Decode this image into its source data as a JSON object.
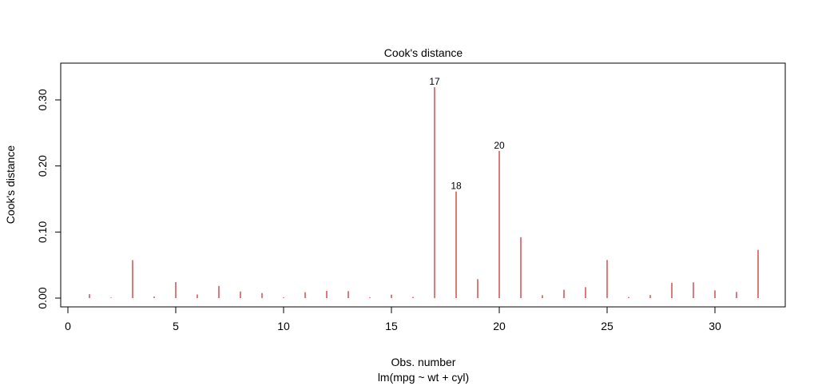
{
  "chart_data": {
    "type": "bar",
    "title": "Cook's distance",
    "xlabel": "Obs. number",
    "subtitle": "lm(mpg ~ wt + cyl)",
    "ylabel": "Cook's distance",
    "xlim": [
      0,
      33
    ],
    "ylim": [
      0,
      0.35
    ],
    "x_ticks": [
      0,
      5,
      10,
      15,
      20,
      25,
      30
    ],
    "y_ticks": [
      0.0,
      0.1,
      0.2,
      0.3
    ],
    "y_tick_labels": [
      "0.00",
      "0.10",
      "0.20",
      "0.30"
    ],
    "grid": false,
    "bar_color": "#cc3333",
    "x": [
      1,
      2,
      3,
      4,
      5,
      6,
      7,
      8,
      9,
      10,
      11,
      12,
      13,
      14,
      15,
      16,
      17,
      18,
      19,
      20,
      21,
      22,
      23,
      24,
      25,
      26,
      27,
      28,
      29,
      30,
      31,
      32
    ],
    "values": [
      0.0059,
      0.0008,
      0.0574,
      0.0023,
      0.0242,
      0.0055,
      0.0183,
      0.01,
      0.0075,
      0.0011,
      0.0089,
      0.0109,
      0.0105,
      0.0011,
      0.0052,
      0.0017,
      0.3192,
      0.1613,
      0.0287,
      0.2227,
      0.0922,
      0.0044,
      0.0127,
      0.0166,
      0.0576,
      0.0016,
      0.0045,
      0.0232,
      0.0238,
      0.0117,
      0.0094,
      0.073
    ],
    "annotations": [
      {
        "x": 17,
        "label": "17"
      },
      {
        "x": 18,
        "label": "18"
      },
      {
        "x": 20,
        "label": "20"
      }
    ]
  }
}
